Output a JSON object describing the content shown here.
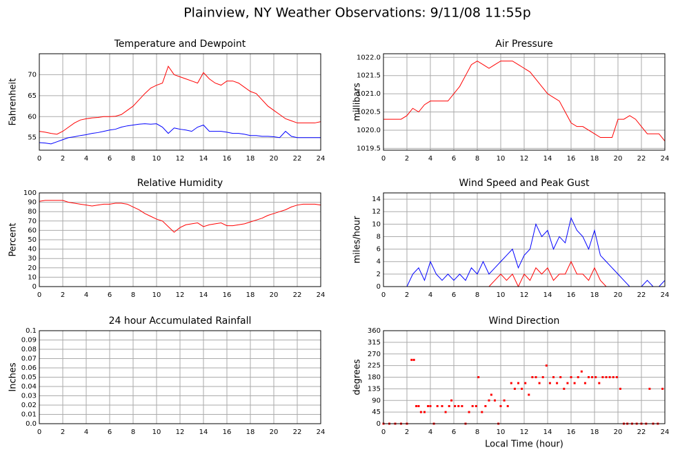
{
  "title": "Plainview, NY Weather Observations: 9/11/08 11:55p",
  "chart_data": [
    {
      "type": "line",
      "title": "Temperature and Dewpoint",
      "ylabel": "Fahrenheit",
      "x": [
        0,
        0.5,
        1,
        1.5,
        2,
        2.5,
        3,
        3.5,
        4,
        4.5,
        5,
        5.5,
        6,
        6.5,
        7,
        7.5,
        8,
        8.5,
        9,
        9.5,
        10,
        10.5,
        11,
        11.5,
        12,
        12.5,
        13,
        13.5,
        14,
        14.5,
        15,
        15.5,
        16,
        16.5,
        17,
        17.5,
        18,
        18.5,
        19,
        19.5,
        20,
        20.5,
        21,
        21.5,
        22,
        22.5,
        23,
        23.5,
        24
      ],
      "series": [
        {
          "color": "#ff0000",
          "values": [
            56.5,
            56.3,
            56,
            55.8,
            56.5,
            57.5,
            58.5,
            59.2,
            59.5,
            59.7,
            59.8,
            60,
            60,
            60.1,
            60.5,
            61.5,
            62.5,
            64,
            65.5,
            66.8,
            67.5,
            68,
            72,
            70,
            69.5,
            69,
            68.5,
            68,
            70.5,
            69,
            68,
            67.5,
            68.5,
            68.5,
            68,
            67,
            66,
            65.5,
            64,
            62.5,
            61.5,
            60.5,
            59.5,
            59,
            58.5,
            58.5,
            58.5,
            58.5,
            58.8
          ]
        },
        {
          "color": "#0000ff",
          "values": [
            53.8,
            53.7,
            53.5,
            54,
            54.5,
            55,
            55.2,
            55.5,
            55.7,
            56,
            56.2,
            56.5,
            56.8,
            57,
            57.5,
            57.8,
            58,
            58.2,
            58.3,
            58.2,
            58.3,
            57.5,
            56,
            57.3,
            57,
            56.8,
            56.5,
            57.5,
            58,
            56.5,
            56.5,
            56.5,
            56.3,
            56,
            56,
            55.8,
            55.5,
            55.5,
            55.3,
            55.3,
            55.2,
            55,
            56.5,
            55.3,
            55,
            55,
            55,
            55,
            55
          ]
        }
      ],
      "xlim": [
        0,
        24
      ],
      "xticks": [
        0,
        2,
        4,
        6,
        8,
        10,
        12,
        14,
        16,
        18,
        20,
        22,
        24
      ],
      "ylim": [
        52,
        75
      ],
      "yticks": [
        55,
        60,
        65,
        70
      ],
      "grid": true
    },
    {
      "type": "line",
      "title": "Air Pressure",
      "ylabel": "millibars",
      "x": [
        0,
        0.5,
        1,
        1.5,
        2,
        2.5,
        3,
        3.5,
        4,
        4.5,
        5,
        5.5,
        6,
        6.5,
        7,
        7.5,
        8,
        8.5,
        9,
        9.5,
        10,
        10.5,
        11,
        11.5,
        12,
        12.5,
        13,
        13.5,
        14,
        14.5,
        15,
        15.5,
        16,
        16.5,
        17,
        17.5,
        18,
        18.5,
        19,
        19.5,
        20,
        20.5,
        21,
        21.5,
        22,
        22.5,
        23,
        23.5,
        24
      ],
      "series": [
        {
          "color": "#ff0000",
          "values": [
            1020.3,
            1020.3,
            1020.3,
            1020.3,
            1020.4,
            1020.6,
            1020.5,
            1020.7,
            1020.8,
            1020.8,
            1020.8,
            1020.8,
            1021,
            1021.2,
            1021.5,
            1021.8,
            1021.9,
            1021.8,
            1021.7,
            1021.8,
            1021.9,
            1021.9,
            1021.9,
            1021.8,
            1021.7,
            1021.6,
            1021.4,
            1021.2,
            1021,
            1020.9,
            1020.8,
            1020.5,
            1020.2,
            1020.1,
            1020.1,
            1020,
            1019.9,
            1019.8,
            1019.8,
            1019.8,
            1020.3,
            1020.3,
            1020.4,
            1020.3,
            1020.1,
            1019.9,
            1019.9,
            1019.9,
            1019.7
          ]
        }
      ],
      "xlim": [
        0,
        24
      ],
      "xticks": [
        0,
        2,
        4,
        6,
        8,
        10,
        12,
        14,
        16,
        18,
        20,
        22,
        24
      ],
      "ylim": [
        1019.45,
        1022.1
      ],
      "yticks": [
        1019.5,
        {
          "value": 1020,
          "label": "1020.0"
        },
        1020.5,
        {
          "value": 1021,
          "label": "1021.0"
        },
        1021.5,
        {
          "value": 1022,
          "label": "1022.0"
        }
      ],
      "grid": true
    },
    {
      "type": "line",
      "title": "Relative Humidity",
      "ylabel": "Percent",
      "x": [
        0,
        0.5,
        1,
        1.5,
        2,
        2.5,
        3,
        3.5,
        4,
        4.5,
        5,
        5.5,
        6,
        6.5,
        7,
        7.5,
        8,
        8.5,
        9,
        9.5,
        10,
        10.5,
        11,
        11.5,
        12,
        12.5,
        13,
        13.5,
        14,
        14.5,
        15,
        15.5,
        16,
        16.5,
        17,
        17.5,
        18,
        18.5,
        19,
        19.5,
        20,
        20.5,
        21,
        21.5,
        22,
        22.5,
        23,
        23.5,
        24
      ],
      "series": [
        {
          "color": "#ff0000",
          "values": [
            91,
            92,
            92,
            92,
            92,
            90,
            89,
            88,
            87,
            86,
            87,
            88,
            88,
            89,
            89,
            88,
            85,
            82,
            78,
            75,
            72,
            70,
            64,
            58,
            63,
            66,
            67,
            68,
            64,
            66,
            67,
            68,
            65,
            65,
            66,
            67,
            69,
            71,
            73,
            76,
            78,
            80,
            82,
            85,
            87,
            88,
            88,
            88,
            87
          ]
        }
      ],
      "xlim": [
        0,
        24
      ],
      "xticks": [
        0,
        2,
        4,
        6,
        8,
        10,
        12,
        14,
        16,
        18,
        20,
        22,
        24
      ],
      "ylim": [
        0,
        100
      ],
      "yticks": [
        0,
        10,
        20,
        30,
        40,
        50,
        60,
        70,
        80,
        90,
        100
      ],
      "grid": true
    },
    {
      "type": "line",
      "title": "Wind Speed and Peak Gust",
      "ylabel": "miles/hour",
      "x": [
        0,
        0.5,
        1,
        1.5,
        2,
        2.5,
        3,
        3.5,
        4,
        4.5,
        5,
        5.5,
        6,
        6.5,
        7,
        7.5,
        8,
        8.5,
        9,
        9.5,
        10,
        10.5,
        11,
        11.5,
        12,
        12.5,
        13,
        13.5,
        14,
        14.5,
        15,
        15.5,
        16,
        16.5,
        17,
        17.5,
        18,
        18.5,
        19,
        19.5,
        20,
        20.5,
        21,
        21.5,
        22,
        22.5,
        23,
        23.5,
        24
      ],
      "series": [
        {
          "color": "#0000ff",
          "values": [
            0,
            0,
            0,
            0,
            0,
            2,
            3,
            1,
            4,
            2,
            1,
            2,
            1,
            2,
            1,
            3,
            2,
            4,
            2,
            3,
            4,
            5,
            6,
            3,
            5,
            6,
            10,
            8,
            9,
            6,
            8,
            7,
            11,
            9,
            8,
            6,
            9,
            5,
            4,
            3,
            2,
            1,
            0,
            0,
            0,
            1,
            0,
            0,
            1
          ]
        },
        {
          "color": "#ff0000",
          "values": [
            0,
            0,
            0,
            0,
            0,
            0,
            0,
            0,
            0,
            0,
            0,
            0,
            0,
            0,
            0,
            0,
            0,
            0,
            0,
            1,
            2,
            1,
            2,
            0,
            2,
            1,
            3,
            2,
            3,
            1,
            2,
            2,
            4,
            2,
            2,
            1,
            3,
            1,
            0,
            0,
            0,
            0,
            0,
            0,
            0,
            0,
            0,
            0,
            0
          ]
        }
      ],
      "xlim": [
        0,
        24
      ],
      "xticks": [
        0,
        2,
        4,
        6,
        8,
        10,
        12,
        14,
        16,
        18,
        20,
        22,
        24
      ],
      "ylim": [
        0,
        15
      ],
      "yticks": [
        0,
        2,
        4,
        6,
        8,
        10,
        12,
        14
      ],
      "grid": true
    },
    {
      "type": "line",
      "title": "24 hour Accumulated Rainfall",
      "ylabel": "Inches",
      "x": [
        0,
        24
      ],
      "series": [
        {
          "color": "#ff0000",
          "values": [
            0,
            0
          ]
        }
      ],
      "xlim": [
        0,
        24
      ],
      "xticks": [
        0,
        2,
        4,
        6,
        8,
        10,
        12,
        14,
        16,
        18,
        20,
        22,
        24
      ],
      "ylim": [
        0,
        0.1
      ],
      "yticks": [
        {
          "value": 0,
          "label": "0.0"
        },
        0.01,
        0.02,
        0.03,
        0.04,
        0.05,
        0.06,
        0.07,
        0.08,
        0.09,
        0.1
      ],
      "grid": true
    },
    {
      "type": "scatter",
      "title": "Wind Direction",
      "ylabel": "degrees",
      "xlabel": "Local Time (hour)",
      "x": [
        0,
        0.5,
        1,
        1.5,
        2,
        2.4,
        2.6,
        2.8,
        3.0,
        3.2,
        3.5,
        3.8,
        4.0,
        4.3,
        4.6,
        5.0,
        5.3,
        5.6,
        5.8,
        6.1,
        6.4,
        6.7,
        7.0,
        7.3,
        7.6,
        7.9,
        8.1,
        8.4,
        8.7,
        9.0,
        9.2,
        9.5,
        9.8,
        10.0,
        10.3,
        10.6,
        10.9,
        11.2,
        11.5,
        11.8,
        12.1,
        12.4,
        12.7,
        13.0,
        13.3,
        13.6,
        13.9,
        14.2,
        14.5,
        14.8,
        15.1,
        15.4,
        15.7,
        16.0,
        16.3,
        16.6,
        16.9,
        17.2,
        17.5,
        17.8,
        18.1,
        18.4,
        18.7,
        19.0,
        19.3,
        19.6,
        19.9,
        20.2,
        20.5,
        20.8,
        21.2,
        21.6,
        22.0,
        22.4,
        22.7,
        23.0,
        23.4,
        23.8
      ],
      "series": [
        {
          "color": "#ff0000",
          "values": [
            0,
            0,
            0,
            0,
            0,
            247,
            247,
            68,
            68,
            45,
            45,
            68,
            68,
            0,
            68,
            68,
            45,
            68,
            90,
            68,
            68,
            68,
            0,
            45,
            68,
            68,
            180,
            45,
            68,
            90,
            112,
            90,
            0,
            68,
            90,
            68,
            157,
            135,
            157,
            135,
            157,
            112,
            180,
            180,
            157,
            180,
            225,
            157,
            180,
            157,
            180,
            135,
            157,
            180,
            157,
            180,
            202,
            157,
            180,
            180,
            180,
            157,
            180,
            180,
            180,
            180,
            180,
            135,
            0,
            0,
            0,
            0,
            0,
            0,
            135,
            0,
            0,
            135
          ]
        }
      ],
      "xlim": [
        0,
        24
      ],
      "xticks": [
        0,
        2,
        4,
        6,
        8,
        10,
        12,
        14,
        16,
        18,
        20,
        22,
        24
      ],
      "ylim": [
        0,
        360
      ],
      "yticks": [
        0,
        45,
        90,
        135,
        180,
        225,
        270,
        315,
        360
      ],
      "grid": true
    }
  ]
}
